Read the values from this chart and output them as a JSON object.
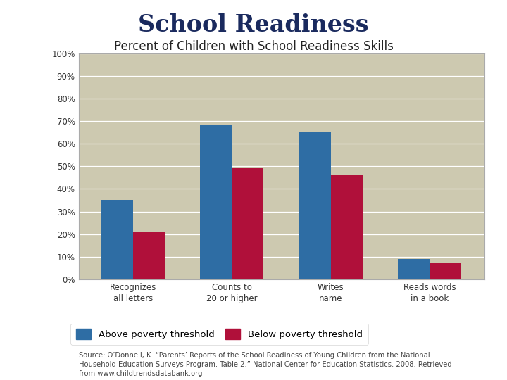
{
  "title": "School Readiness",
  "subtitle": "Percent of Children with School Readiness Skills",
  "categories": [
    "Recognizes\nall letters",
    "Counts to\n20 or higher",
    "Writes\nname",
    "Reads words\nin a book"
  ],
  "above_poverty": [
    35,
    68,
    65,
    9
  ],
  "below_poverty": [
    21,
    49,
    46,
    7
  ],
  "above_color": "#2e6da4",
  "below_color": "#b0103a",
  "chart_bg": "#cdc9b0",
  "outer_bg": "#ffffff",
  "chart_border": "#aaa89a",
  "ylim": [
    0,
    100
  ],
  "yticks": [
    0,
    10,
    20,
    30,
    40,
    50,
    60,
    70,
    80,
    90,
    100
  ],
  "ytick_labels": [
    "0%",
    "10%",
    "20%",
    "30%",
    "40%",
    "50%",
    "60%",
    "70%",
    "80%",
    "90%",
    "100%"
  ],
  "legend_above": "Above poverty threshold",
  "legend_below": "Below poverty threshold",
  "source_text": "Source: O’Donnell, K. “Parents’ Reports of the School Readiness of Young Children from the National\nHousehold Education Surveys Program. Table 2.” National Center for Education Statistics. 2008. Retrieved\nfrom www.childtrendsdatabank.org",
  "title_fontsize": 24,
  "subtitle_fontsize": 12,
  "bar_width": 0.32,
  "title_color": "#1a2a5e",
  "subtitle_color": "#222222",
  "tick_label_color": "#333333",
  "source_fontsize": 7.2,
  "source_color": "#444444",
  "legend_fontsize": 9.5
}
